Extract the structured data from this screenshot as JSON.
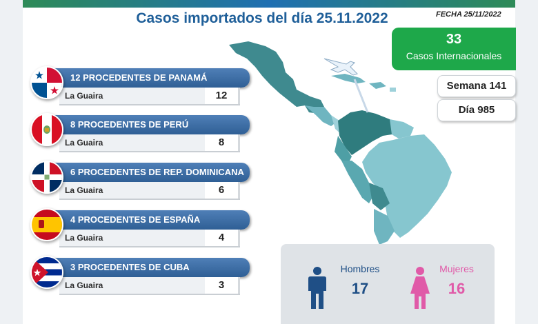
{
  "title": "Casos importados del día 25.11.2022",
  "fecha": "FECHA 25/11/2022",
  "internacional": {
    "count": "33",
    "label": "Casos Internacionales",
    "color": "#1ea84a"
  },
  "semana": "Semana 141",
  "dia": "Día 985",
  "rows": [
    {
      "header": "12 PROCEDENTES DE PANAMÁ",
      "state": "La Guaira",
      "value": "12",
      "flag_icon": "panama-flag-icon"
    },
    {
      "header": "8 PROCEDENTES DE PERÚ",
      "state": "La Guaira",
      "value": "8",
      "flag_icon": "peru-flag-icon"
    },
    {
      "header": "6 PROCEDENTES DE REP. DOMINICANA",
      "state": "La Guaira",
      "value": "6",
      "flag_icon": "dominican-republic-flag-icon"
    },
    {
      "header": "4 PROCEDENTES DE ESPAÑA",
      "state": "La Guaira",
      "value": "4",
      "flag_icon": "spain-flag-icon"
    },
    {
      "header": "3 PROCEDENTES DE CUBA",
      "state": "La Guaira",
      "value": "3",
      "flag_icon": "cuba-flag-icon"
    }
  ],
  "gender": {
    "hombres_label": "Hombres",
    "hombres_count": "17",
    "hombres_color": "#1f4f86",
    "mujeres_label": "Mujeres",
    "mujeres_count": "16",
    "mujeres_color": "#e05aa8"
  }
}
